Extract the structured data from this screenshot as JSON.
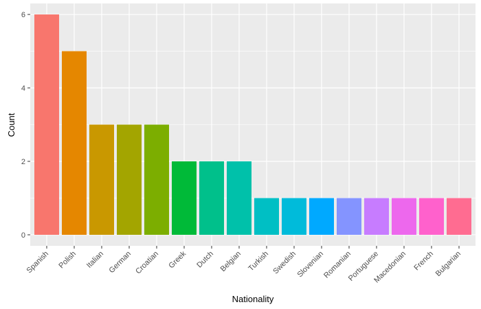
{
  "chart_data": {
    "type": "bar",
    "x_label": "Nationality",
    "y_label": "Count",
    "categories": [
      "Spanish",
      "Polish",
      "Italian",
      "German",
      "Croatian",
      "Greek",
      "Dutch",
      "Belgian",
      "Turkish",
      "Swedish",
      "Slovenian",
      "Romanian",
      "Portuguese",
      "Macedonian",
      "French",
      "Bulgarian"
    ],
    "values": [
      6,
      5,
      3,
      3,
      3,
      2,
      2,
      2,
      1,
      1,
      1,
      1,
      1,
      1,
      1,
      1
    ],
    "colors": [
      "#F8766D",
      "#E58700",
      "#C99800",
      "#A3A500",
      "#7CAE00",
      "#00BA38",
      "#00C08B",
      "#00C1AA",
      "#00BFC4",
      "#00BBDA",
      "#00A9FF",
      "#8494FF",
      "#C77CFF",
      "#ED68ED",
      "#FF61CC",
      "#FF6C91"
    ],
    "ylim": [
      -0.3,
      6.3
    ],
    "yticks": [
      0,
      2,
      4,
      6
    ],
    "minor_yticks": [
      1,
      3,
      5
    ],
    "grid": true
  }
}
